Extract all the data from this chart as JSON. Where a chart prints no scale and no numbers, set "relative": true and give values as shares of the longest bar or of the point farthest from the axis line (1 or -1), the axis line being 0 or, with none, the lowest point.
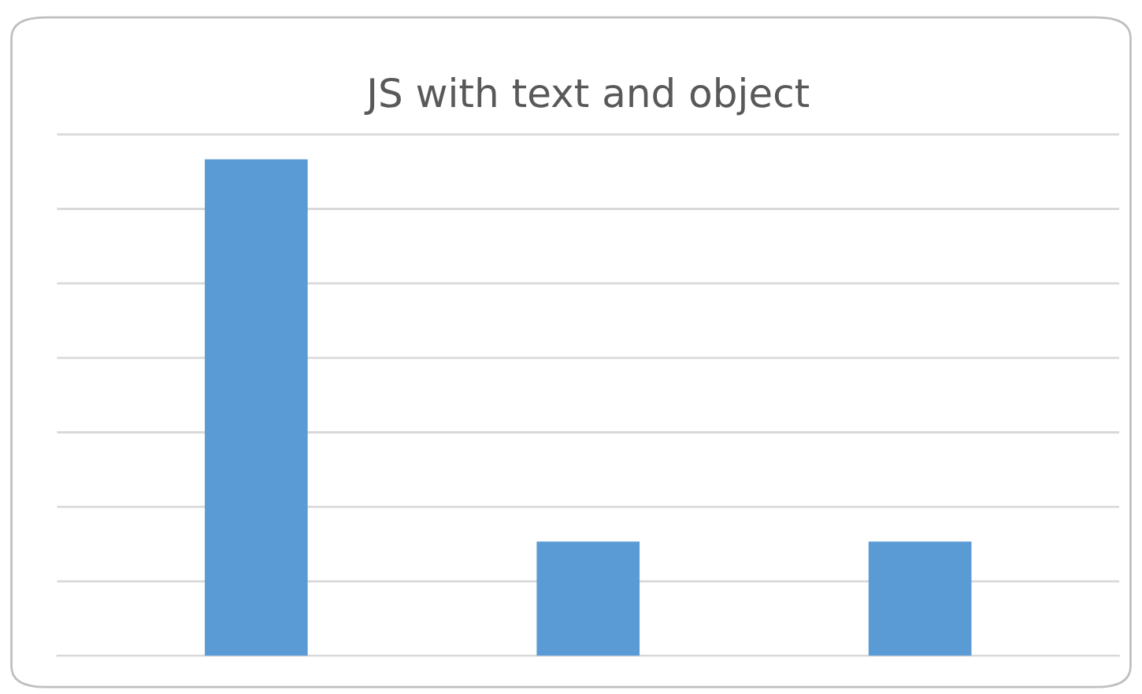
{
  "chart_data": {
    "type": "bar",
    "title": "JS with text and object",
    "categories": [
      null,
      null,
      null
    ],
    "values": [
      1,
      0.23,
      0.23
    ],
    "color": "#5b9bd5",
    "relative": true,
    "grid": "y"
  }
}
